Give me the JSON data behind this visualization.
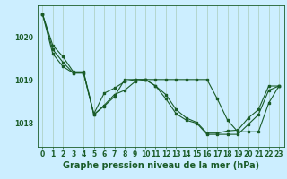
{
  "background_color": "#cceeff",
  "grid_color": "#aaccbb",
  "line_color": "#1a5c28",
  "marker_color": "#1a5c28",
  "xlabel": "Graphe pression niveau de la mer (hPa)",
  "xlabel_fontsize": 7,
  "tick_fontsize": 5.5,
  "xlim": [
    -0.5,
    23.5
  ],
  "ylim": [
    1017.45,
    1020.75
  ],
  "yticks": [
    1018,
    1019,
    1020
  ],
  "xticks": [
    0,
    1,
    2,
    3,
    4,
    5,
    6,
    7,
    8,
    9,
    10,
    11,
    12,
    13,
    14,
    15,
    16,
    17,
    18,
    19,
    20,
    21,
    22,
    23
  ],
  "series": [
    [
      1020.55,
      1019.82,
      1019.55,
      1019.2,
      1019.2,
      1018.22,
      1018.7,
      1018.82,
      1018.97,
      1019.02,
      1019.02,
      1018.87,
      1018.67,
      1018.32,
      1018.12,
      1018.02,
      1017.77,
      1017.77,
      1017.82,
      1017.84,
      1018.12,
      1018.32,
      1018.87,
      1018.87
    ],
    [
      1020.55,
      1019.72,
      1019.42,
      1019.17,
      1019.17,
      1018.2,
      1018.42,
      1018.67,
      1018.77,
      1018.97,
      1019.02,
      1019.02,
      1019.02,
      1019.02,
      1019.02,
      1019.02,
      1019.02,
      1018.57,
      1018.07,
      1017.8,
      1017.8,
      1017.8,
      1018.47,
      1018.87
    ],
    [
      1020.55,
      1019.62,
      1019.32,
      1019.17,
      1019.17,
      1018.2,
      1018.4,
      1018.62,
      1019.02,
      1019.02,
      1019.02,
      1018.87,
      1018.57,
      1018.22,
      1018.07,
      1018.0,
      1017.74,
      1017.74,
      1017.74,
      1017.74,
      1017.97,
      1018.2,
      1018.77,
      1018.87
    ]
  ]
}
